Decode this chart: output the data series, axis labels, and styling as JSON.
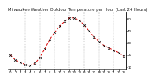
{
  "title": "Milwaukee Weather Outdoor Temperature per Hour (Last 24 Hours)",
  "hours": [
    0,
    1,
    2,
    3,
    4,
    5,
    6,
    7,
    8,
    9,
    10,
    11,
    12,
    13,
    14,
    15,
    16,
    17,
    18,
    19,
    20,
    21,
    22,
    23
  ],
  "temps": [
    20,
    16,
    14,
    12,
    11,
    13,
    18,
    25,
    33,
    39,
    44,
    48,
    51,
    51,
    49,
    45,
    40,
    35,
    31,
    28,
    26,
    24,
    22,
    19
  ],
  "line_color": "#dd0000",
  "marker_color": "#111111",
  "bg_color": "#ffffff",
  "grid_color": "#999999",
  "grid_hours": [
    3,
    6,
    9,
    12,
    15,
    18,
    21
  ],
  "ylim_min": 8,
  "ylim_max": 56,
  "yticks": [
    10,
    20,
    30,
    40,
    50
  ],
  "title_fontsize": 3.8,
  "tick_fontsize": 2.8
}
